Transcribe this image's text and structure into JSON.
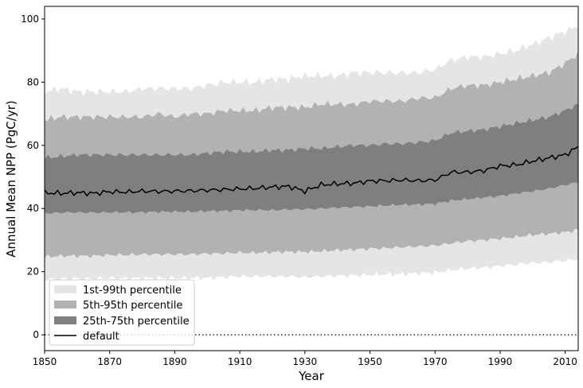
{
  "chart_data": {
    "type": "area",
    "title": "",
    "xlabel": "Year",
    "ylabel": "Annual Mean NPP (PgC/yr)",
    "xlim": [
      1850,
      2014
    ],
    "ylim": [
      -5,
      104
    ],
    "xticks": [
      1850,
      1870,
      1890,
      1910,
      1930,
      1950,
      1970,
      1990,
      2010
    ],
    "yticks": [
      0,
      20,
      40,
      60,
      80,
      100
    ],
    "grid": false,
    "legend_position": "lower-left",
    "reference_line": {
      "y": 0,
      "style": "dotted",
      "color": "#000000"
    },
    "x": [
      1850,
      1855,
      1860,
      1865,
      1870,
      1875,
      1880,
      1885,
      1890,
      1895,
      1900,
      1905,
      1910,
      1915,
      1920,
      1925,
      1930,
      1935,
      1940,
      1945,
      1950,
      1955,
      1960,
      1965,
      1970,
      1975,
      1980,
      1985,
      1990,
      1995,
      2000,
      2005,
      2010,
      2014
    ],
    "bands": [
      {
        "name": "1st-99th percentile",
        "color": "#e5e5e5",
        "lower": [
          17.5,
          17.8,
          17.8,
          17.8,
          18.0,
          17.8,
          18.0,
          18.0,
          18.0,
          18.0,
          18.0,
          18.3,
          18.5,
          18.5,
          18.5,
          18.5,
          18.3,
          18.5,
          18.7,
          18.8,
          19.0,
          19.2,
          19.3,
          19.5,
          19.8,
          20.5,
          21.0,
          21.3,
          21.8,
          22.3,
          22.8,
          23.0,
          23.5,
          24.0
        ],
        "upper": [
          77,
          78,
          77,
          77,
          77,
          77,
          78,
          78,
          78,
          78,
          79,
          80,
          80,
          80,
          81,
          81,
          82,
          82,
          82,
          83,
          83,
          83,
          83,
          83,
          84,
          87,
          88,
          88,
          89,
          90,
          92,
          94,
          96,
          98
        ]
      },
      {
        "name": "5th-95th percentile",
        "color": "#b2b2b2",
        "lower": [
          24.7,
          25.0,
          25.0,
          25.0,
          25.3,
          25.3,
          25.5,
          25.5,
          25.5,
          25.5,
          25.7,
          25.8,
          26.0,
          26.0,
          26.2,
          26.3,
          26.3,
          26.5,
          26.8,
          27.0,
          27.3,
          27.5,
          27.8,
          28.0,
          28.3,
          29.0,
          29.7,
          30.0,
          30.5,
          31.0,
          31.7,
          32.0,
          32.5,
          33.3
        ],
        "upper": [
          68,
          69,
          69,
          69,
          69,
          69,
          69,
          70,
          69,
          70,
          70,
          71,
          71,
          71,
          72,
          72,
          72,
          73,
          73,
          73,
          74,
          74,
          74,
          75,
          75,
          78,
          79,
          79,
          80,
          81,
          82,
          83,
          86,
          89
        ]
      },
      {
        "name": "25th-75th percentile",
        "color": "#7f7f7f",
        "lower": [
          38.5,
          38.7,
          38.8,
          38.7,
          38.8,
          38.8,
          38.8,
          39.0,
          39.0,
          39.0,
          39.2,
          39.2,
          39.5,
          39.5,
          39.5,
          39.7,
          39.8,
          40.0,
          40.3,
          40.5,
          40.7,
          41.0,
          41.2,
          41.3,
          41.5,
          42.5,
          43.0,
          43.5,
          44.0,
          44.8,
          45.5,
          46.3,
          47.5,
          48.3
        ],
        "upper": [
          56,
          56.5,
          57,
          57,
          57,
          57,
          57,
          57,
          57,
          57,
          57.5,
          58,
          58,
          58,
          58.5,
          58.5,
          59,
          59,
          59.5,
          60,
          60,
          60.5,
          60.5,
          61,
          61.5,
          64,
          64.5,
          65,
          66,
          67,
          68,
          69,
          71,
          73
        ]
      }
    ],
    "series": [
      {
        "name": "default",
        "color": "#000000",
        "values": [
          45.0,
          44.8,
          45.0,
          44.8,
          45.3,
          45.2,
          45.5,
          45.4,
          45.5,
          45.6,
          45.8,
          46.0,
          46.2,
          46.4,
          46.8,
          47.0,
          45.5,
          47.5,
          47.8,
          48.0,
          48.7,
          48.8,
          49.0,
          48.8,
          49.0,
          51.5,
          51.5,
          52.0,
          53.5,
          53.8,
          55.0,
          56.0,
          57.0,
          59.5
        ]
      }
    ]
  }
}
